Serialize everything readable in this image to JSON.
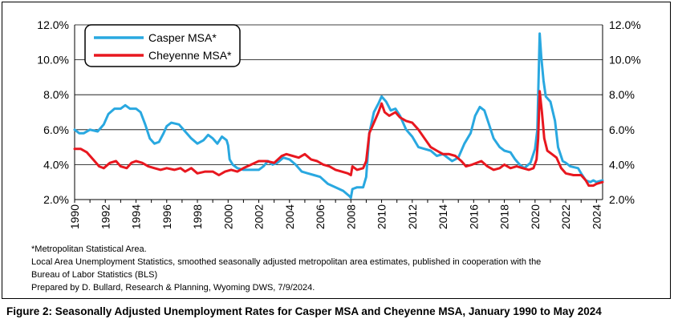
{
  "chart_data": {
    "type": "line",
    "title": "",
    "xlabel": "",
    "ylabel": "",
    "xlim": [
      1990,
      2024.4
    ],
    "ylim": [
      2.0,
      12.0
    ],
    "x_ticks": [
      "1990",
      "1992",
      "1994",
      "1996",
      "1998",
      "2000",
      "2002",
      "2004",
      "2006",
      "2008",
      "2010",
      "2012",
      "2014",
      "2016",
      "2018",
      "2020",
      "2022",
      "2024"
    ],
    "y_ticks_left": [
      "2.0%",
      "4.0%",
      "6.0%",
      "8.0%",
      "10.0%",
      "12.0%"
    ],
    "y_ticks_right": [
      "2.0%",
      "4.0%",
      "6.0%",
      "8.0%",
      "10.0%",
      "12.0%"
    ],
    "grid": "horizontal",
    "legend_position": "top-left",
    "series": [
      {
        "name": "Casper MSA*",
        "color": "#29a8e0",
        "points": [
          [
            1990.0,
            6.0
          ],
          [
            1990.3,
            5.8
          ],
          [
            1990.6,
            5.8
          ],
          [
            1991.0,
            6.0
          ],
          [
            1991.5,
            5.9
          ],
          [
            1991.9,
            6.3
          ],
          [
            1992.2,
            6.9
          ],
          [
            1992.6,
            7.2
          ],
          [
            1993.0,
            7.2
          ],
          [
            1993.3,
            7.4
          ],
          [
            1993.6,
            7.2
          ],
          [
            1994.0,
            7.2
          ],
          [
            1994.3,
            7.0
          ],
          [
            1994.6,
            6.3
          ],
          [
            1994.9,
            5.5
          ],
          [
            1995.2,
            5.2
          ],
          [
            1995.5,
            5.3
          ],
          [
            1995.8,
            5.8
          ],
          [
            1996.0,
            6.2
          ],
          [
            1996.3,
            6.4
          ],
          [
            1996.8,
            6.3
          ],
          [
            1997.2,
            5.9
          ],
          [
            1997.6,
            5.5
          ],
          [
            1998.0,
            5.2
          ],
          [
            1998.4,
            5.4
          ],
          [
            1998.7,
            5.7
          ],
          [
            1999.0,
            5.5
          ],
          [
            1999.3,
            5.2
          ],
          [
            1999.6,
            5.6
          ],
          [
            1999.9,
            5.4
          ],
          [
            2000.0,
            5.1
          ],
          [
            2000.1,
            4.3
          ],
          [
            2000.3,
            4.0
          ],
          [
            2000.6,
            3.8
          ],
          [
            2001.0,
            3.7
          ],
          [
            2001.5,
            3.7
          ],
          [
            2002.0,
            3.7
          ],
          [
            2002.3,
            3.9
          ],
          [
            2002.6,
            4.2
          ],
          [
            2002.9,
            4.0
          ],
          [
            2003.2,
            4.1
          ],
          [
            2003.6,
            4.4
          ],
          [
            2004.0,
            4.3
          ],
          [
            2004.4,
            4.0
          ],
          [
            2004.8,
            3.6
          ],
          [
            2005.2,
            3.5
          ],
          [
            2005.6,
            3.4
          ],
          [
            2006.0,
            3.3
          ],
          [
            2006.5,
            2.9
          ],
          [
            2007.0,
            2.7
          ],
          [
            2007.5,
            2.5
          ],
          [
            2007.9,
            2.2
          ],
          [
            2008.0,
            2.1
          ],
          [
            2008.1,
            2.6
          ],
          [
            2008.4,
            2.7
          ],
          [
            2008.8,
            2.7
          ],
          [
            2009.0,
            3.3
          ],
          [
            2009.2,
            5.8
          ],
          [
            2009.5,
            7.0
          ],
          [
            2009.8,
            7.5
          ],
          [
            2010.0,
            7.9
          ],
          [
            2010.3,
            7.6
          ],
          [
            2010.6,
            7.1
          ],
          [
            2010.9,
            7.2
          ],
          [
            2011.2,
            6.8
          ],
          [
            2011.6,
            6.0
          ],
          [
            2012.0,
            5.6
          ],
          [
            2012.4,
            5.0
          ],
          [
            2012.8,
            4.9
          ],
          [
            2013.2,
            4.8
          ],
          [
            2013.6,
            4.5
          ],
          [
            2014.0,
            4.6
          ],
          [
            2014.3,
            4.4
          ],
          [
            2014.6,
            4.2
          ],
          [
            2015.0,
            4.4
          ],
          [
            2015.4,
            5.2
          ],
          [
            2015.8,
            5.8
          ],
          [
            2016.1,
            6.8
          ],
          [
            2016.4,
            7.3
          ],
          [
            2016.7,
            7.1
          ],
          [
            2017.0,
            6.3
          ],
          [
            2017.3,
            5.5
          ],
          [
            2017.7,
            5.0
          ],
          [
            2018.0,
            4.8
          ],
          [
            2018.4,
            4.7
          ],
          [
            2018.7,
            4.3
          ],
          [
            2019.0,
            4.0
          ],
          [
            2019.3,
            3.8
          ],
          [
            2019.7,
            4.1
          ],
          [
            2020.0,
            4.9
          ],
          [
            2020.15,
            6.0
          ],
          [
            2020.3,
            11.5
          ],
          [
            2020.4,
            10.2
          ],
          [
            2020.55,
            8.8
          ],
          [
            2020.7,
            7.9
          ],
          [
            2021.0,
            7.6
          ],
          [
            2021.3,
            6.5
          ],
          [
            2021.5,
            5.0
          ],
          [
            2021.8,
            4.2
          ],
          [
            2022.0,
            4.1
          ],
          [
            2022.3,
            3.9
          ],
          [
            2022.8,
            3.8
          ],
          [
            2023.0,
            3.5
          ],
          [
            2023.3,
            3.1
          ],
          [
            2023.6,
            3.0
          ],
          [
            2023.8,
            3.1
          ],
          [
            2024.0,
            3.0
          ],
          [
            2024.4,
            3.1
          ]
        ]
      },
      {
        "name": "Cheyenne MSA*",
        "color": "#e8171f",
        "points": [
          [
            1990.0,
            4.9
          ],
          [
            1990.4,
            4.9
          ],
          [
            1990.8,
            4.7
          ],
          [
            1991.2,
            4.3
          ],
          [
            1991.6,
            3.9
          ],
          [
            1991.9,
            3.8
          ],
          [
            1992.3,
            4.1
          ],
          [
            1992.7,
            4.2
          ],
          [
            1993.0,
            3.9
          ],
          [
            1993.4,
            3.8
          ],
          [
            1993.7,
            4.1
          ],
          [
            1994.0,
            4.2
          ],
          [
            1994.4,
            4.1
          ],
          [
            1994.8,
            3.9
          ],
          [
            1995.2,
            3.8
          ],
          [
            1995.6,
            3.7
          ],
          [
            1996.0,
            3.8
          ],
          [
            1996.5,
            3.7
          ],
          [
            1996.9,
            3.8
          ],
          [
            1997.2,
            3.6
          ],
          [
            1997.6,
            3.8
          ],
          [
            1998.0,
            3.5
          ],
          [
            1998.5,
            3.6
          ],
          [
            1999.0,
            3.6
          ],
          [
            1999.4,
            3.4
          ],
          [
            1999.8,
            3.6
          ],
          [
            2000.2,
            3.7
          ],
          [
            2000.6,
            3.6
          ],
          [
            2001.0,
            3.8
          ],
          [
            2001.5,
            4.0
          ],
          [
            2002.0,
            4.2
          ],
          [
            2002.5,
            4.2
          ],
          [
            2003.0,
            4.1
          ],
          [
            2003.5,
            4.5
          ],
          [
            2003.8,
            4.6
          ],
          [
            2004.2,
            4.5
          ],
          [
            2004.6,
            4.4
          ],
          [
            2005.0,
            4.6
          ],
          [
            2005.4,
            4.3
          ],
          [
            2005.8,
            4.2
          ],
          [
            2006.2,
            4.0
          ],
          [
            2006.6,
            3.9
          ],
          [
            2007.0,
            3.7
          ],
          [
            2007.4,
            3.6
          ],
          [
            2007.8,
            3.5
          ],
          [
            2008.0,
            3.4
          ],
          [
            2008.1,
            3.9
          ],
          [
            2008.4,
            3.7
          ],
          [
            2008.8,
            3.8
          ],
          [
            2009.0,
            4.2
          ],
          [
            2009.2,
            5.8
          ],
          [
            2009.5,
            6.4
          ],
          [
            2009.8,
            7.0
          ],
          [
            2010.0,
            7.5
          ],
          [
            2010.2,
            7.0
          ],
          [
            2010.5,
            6.8
          ],
          [
            2010.9,
            7.0
          ],
          [
            2011.2,
            6.7
          ],
          [
            2011.6,
            6.5
          ],
          [
            2012.0,
            6.4
          ],
          [
            2012.4,
            6.0
          ],
          [
            2012.8,
            5.5
          ],
          [
            2013.2,
            5.0
          ],
          [
            2013.6,
            4.8
          ],
          [
            2014.0,
            4.6
          ],
          [
            2014.4,
            4.6
          ],
          [
            2014.8,
            4.5
          ],
          [
            2015.2,
            4.2
          ],
          [
            2015.5,
            3.9
          ],
          [
            2015.9,
            4.0
          ],
          [
            2016.2,
            4.1
          ],
          [
            2016.5,
            4.2
          ],
          [
            2016.9,
            3.9
          ],
          [
            2017.3,
            3.7
          ],
          [
            2017.7,
            3.8
          ],
          [
            2018.0,
            4.0
          ],
          [
            2018.4,
            3.8
          ],
          [
            2018.8,
            3.9
          ],
          [
            2019.2,
            3.8
          ],
          [
            2019.6,
            3.7
          ],
          [
            2019.9,
            3.8
          ],
          [
            2020.1,
            4.3
          ],
          [
            2020.2,
            5.5
          ],
          [
            2020.3,
            8.2
          ],
          [
            2020.45,
            7.0
          ],
          [
            2020.6,
            5.5
          ],
          [
            2020.8,
            4.8
          ],
          [
            2021.1,
            4.6
          ],
          [
            2021.4,
            4.4
          ],
          [
            2021.7,
            3.8
          ],
          [
            2022.0,
            3.5
          ],
          [
            2022.5,
            3.4
          ],
          [
            2023.0,
            3.4
          ],
          [
            2023.3,
            3.1
          ],
          [
            2023.5,
            2.8
          ],
          [
            2023.8,
            2.8
          ],
          [
            2024.0,
            2.9
          ],
          [
            2024.4,
            3.0
          ]
        ]
      }
    ]
  },
  "footnotes": [
    "*Metropolitan Statistical Area.",
    "Local Area Unemployment Statistics, smoothed seasonally adjusted metropolitan area estimates, published in cooperation with the",
    "Bureau of Labor Statistics (BLS)",
    "Prepared by D. Bullard, Research & Planning, Wyoming DWS, 7/9/2024."
  ],
  "caption": "Figure 2: Seasonally Adjusted Unemployment Rates for Casper MSA and Cheyenne MSA, January 1990 to May 2024"
}
